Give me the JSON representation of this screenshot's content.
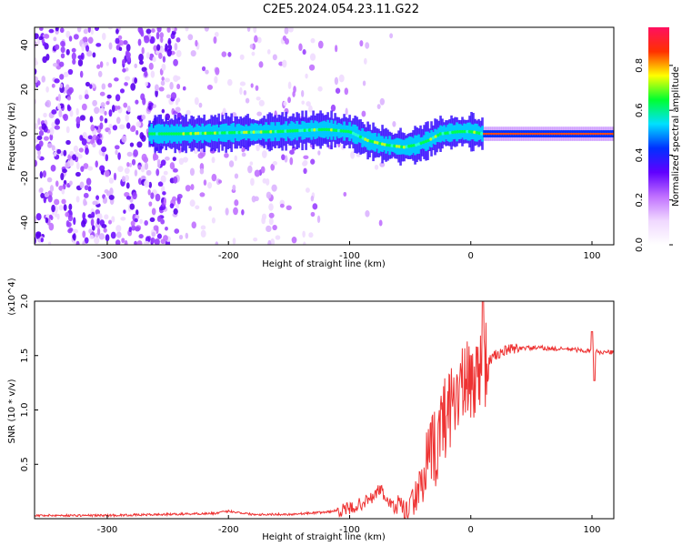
{
  "title": "C2E5.2024.054.23.11.G22",
  "chart_data": [
    {
      "type": "heatmap",
      "xlabel": "Height of straight line (km)",
      "ylabel": "Frequency (Hz)",
      "xlim": [
        -360,
        118
      ],
      "ylim": [
        -50,
        48
      ],
      "x_ticks": [
        -300,
        -200,
        -100,
        0,
        100
      ],
      "y_ticks": [
        -40,
        -20,
        0,
        20,
        40
      ],
      "grid": false,
      "colorbar": {
        "label": "Normalized spectral amplitude",
        "range": [
          0.0,
          0.97
        ],
        "ticks": [
          0.0,
          0.2,
          0.4,
          0.6,
          0.8
        ],
        "colormap": [
          "#ffffff",
          "#f0d8ff",
          "#c070ff",
          "#6000ff",
          "#0030ff",
          "#00e0ff",
          "#00ff30",
          "#ffff00",
          "#ff3000",
          "#ff1060"
        ]
      },
      "ridge_track": [
        {
          "x": -265,
          "y": 0
        },
        {
          "x": -240,
          "y": 0
        },
        {
          "x": -200,
          "y": 0.5
        },
        {
          "x": -160,
          "y": 1
        },
        {
          "x": -120,
          "y": 2
        },
        {
          "x": -100,
          "y": 1
        },
        {
          "x": -85,
          "y": -3
        },
        {
          "x": -70,
          "y": -5
        },
        {
          "x": -55,
          "y": -6
        },
        {
          "x": -45,
          "y": -5
        },
        {
          "x": -35,
          "y": -3
        },
        {
          "x": -25,
          "y": 0
        },
        {
          "x": -10,
          "y": 1
        },
        {
          "x": 0,
          "y": 1
        },
        {
          "x": 10,
          "y": 0
        },
        {
          "x": 50,
          "y": 0
        },
        {
          "x": 118,
          "y": 0
        }
      ]
    },
    {
      "type": "line",
      "xlabel": "Height of straight line (km)",
      "ylabel": "SNR (10 * v/v)",
      "y_multiplier": "(x10^4)",
      "xlim": [
        -360,
        118
      ],
      "ylim": [
        0,
        2.0
      ],
      "x_ticks": [
        -300,
        -200,
        -100,
        0,
        100
      ],
      "y_ticks": [
        0.5,
        1.0,
        1.5,
        2.0
      ],
      "grid": false,
      "series": [
        {
          "color": "#ee3333",
          "x": [
            -360,
            -300,
            -250,
            -210,
            -200,
            -180,
            -150,
            -120,
            -100,
            -90,
            -80,
            -75,
            -70,
            -65,
            -60,
            -55,
            -50,
            -45,
            -40,
            -35,
            -30,
            -25,
            -20,
            -15,
            -10,
            -5,
            0,
            5,
            10,
            15,
            20,
            30,
            40,
            50,
            60,
            70,
            80,
            90,
            100,
            110,
            118
          ],
          "y": [
            0.03,
            0.03,
            0.04,
            0.05,
            0.07,
            0.04,
            0.04,
            0.06,
            0.09,
            0.14,
            0.2,
            0.28,
            0.18,
            0.12,
            0.08,
            0.05,
            0.1,
            0.22,
            0.35,
            0.48,
            0.62,
            0.82,
            0.98,
            1.1,
            1.2,
            1.22,
            1.25,
            1.32,
            1.4,
            1.45,
            1.5,
            1.55,
            1.57,
            1.57,
            1.57,
            1.56,
            1.56,
            1.55,
            1.54,
            1.53,
            1.53
          ]
        }
      ]
    }
  ]
}
